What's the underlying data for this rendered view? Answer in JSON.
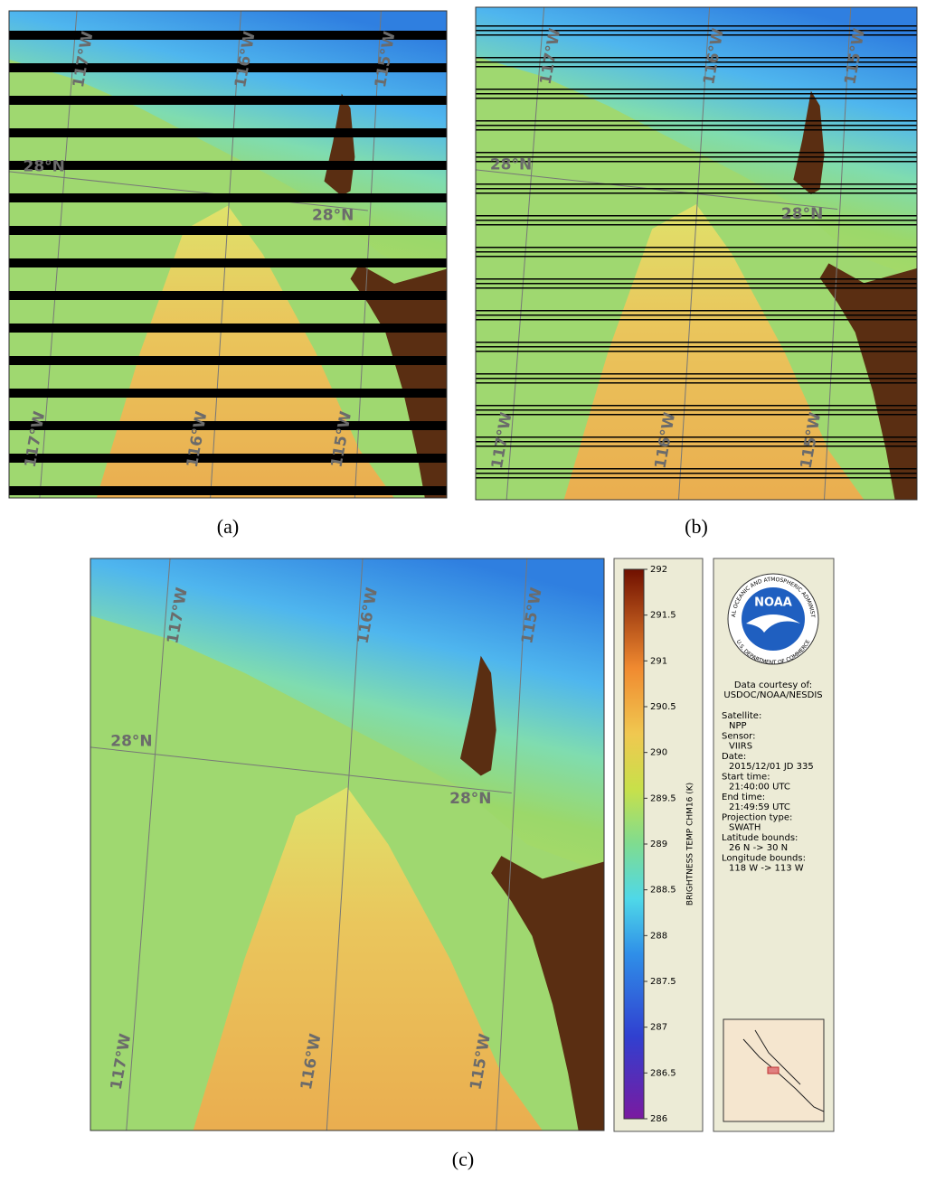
{
  "panels": [
    {
      "caption": "(a)",
      "grid_labels": [
        "117°W",
        "116°W",
        "115°W",
        "28°N",
        "28°N",
        "117°W",
        "116°W",
        "115°W"
      ]
    },
    {
      "caption": "(b)",
      "grid_labels": [
        "117°W",
        "116°W",
        "115°W",
        "28°N",
        "28°N",
        "117°W",
        "116°W",
        "115°W"
      ]
    },
    {
      "caption": "(c)",
      "grid_labels": [
        "117°W",
        "116°W",
        "115°W",
        "28°N",
        "28°N",
        "117°W",
        "116°W",
        "115°W"
      ]
    }
  ],
  "colorbar": {
    "title": "BRIGHTNESS TEMP CHM16 (K)",
    "range": [
      286,
      292
    ],
    "ticks": [
      286,
      286.5,
      287,
      287.5,
      288,
      288.5,
      289,
      289.5,
      290,
      290.5,
      291,
      291.5,
      292
    ]
  },
  "info": {
    "logo": "NOAA",
    "ring_top": "NATIONAL OCEANIC AND ATMOSPHERIC ADMINISTRATION",
    "ring_bottom": "U.S. DEPARTMENT OF COMMERCE",
    "credit": [
      "Data courtesy of:",
      "USDOC/NOAA/NESDIS"
    ],
    "fields": [
      [
        "Satellite:",
        "NPP"
      ],
      [
        "Sensor:",
        "VIIRS"
      ],
      [
        "Date:",
        "2015/12/01 JD 335"
      ],
      [
        "Start time:",
        "21:40:00 UTC"
      ],
      [
        "End time:",
        "21:49:59 UTC"
      ],
      [
        "Projection type:",
        "SWATH"
      ],
      [
        "Latitude bounds:",
        "26 N -> 30 N"
      ],
      [
        "Longitude bounds:",
        "118 W -> 113 W"
      ]
    ]
  }
}
